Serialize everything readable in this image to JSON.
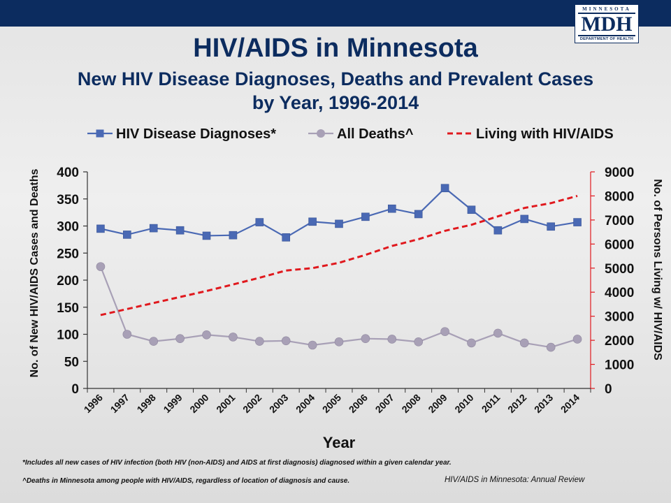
{
  "logo": {
    "state": "MINNESOTA",
    "mdh": "MDH",
    "dept": "DEPARTMENT OF HEALTH"
  },
  "chart_data": {
    "type": "line",
    "title": "HIV/AIDS in Minnesota",
    "subtitle_line1": "New HIV Disease Diagnoses, Deaths and Prevalent Cases",
    "subtitle_line2": "by Year, 1996-2014",
    "xlabel": "Year",
    "ylabel_left": "No. of New HIV/AIDS Cases and Deaths",
    "ylabel_right": "No. of Persons Living w/ HIV/AIDS",
    "ylim_left": [
      0,
      400
    ],
    "ylim_right": [
      0,
      9000
    ],
    "yticks_left": [
      "0",
      "50",
      "100",
      "150",
      "200",
      "250",
      "300",
      "350",
      "400"
    ],
    "yticks_right": [
      "0",
      "1000",
      "2000",
      "3000",
      "4000",
      "5000",
      "6000",
      "7000",
      "8000",
      "9000"
    ],
    "grid": false,
    "legend_position": "top",
    "categories": [
      "1996",
      "1997",
      "1998",
      "1999",
      "2000",
      "2001",
      "2002",
      "2003",
      "2004",
      "2005",
      "2006",
      "2007",
      "2008",
      "2009",
      "2010",
      "2011",
      "2012",
      "2013",
      "2014"
    ],
    "series": [
      {
        "name": "HIV Disease Diagnoses*",
        "axis": "left",
        "color": "#4a69b4",
        "marker": "square",
        "values": [
          295,
          284,
          296,
          292,
          282,
          283,
          307,
          279,
          308,
          304,
          317,
          332,
          322,
          370,
          330,
          292,
          313,
          299,
          307
        ]
      },
      {
        "name": "All Deaths^",
        "axis": "left",
        "color": "#a8a0b6",
        "marker": "circle",
        "values": [
          225,
          100,
          87,
          92,
          99,
          95,
          87,
          88,
          80,
          86,
          92,
          91,
          86,
          105,
          84,
          102,
          84,
          76,
          91
        ]
      },
      {
        "name": "Living with HIV/AIDS",
        "axis": "right",
        "color": "#e0191e",
        "marker": "none",
        "dashed": true,
        "values": [
          3050,
          3300,
          3550,
          3800,
          4050,
          4320,
          4600,
          4900,
          5000,
          5220,
          5550,
          5920,
          6200,
          6550,
          6800,
          7150,
          7500,
          7700,
          8000
        ]
      }
    ]
  },
  "footnotes": {
    "note1": "*Includes all new cases of HIV infection (both HIV (non-AIDS) and AIDS at first diagnosis) diagnosed within a given calendar year.",
    "note2": "^Deaths in Minnesota among people with HIV/AIDS, regardless of location of diagnosis and cause.",
    "source": "HIV/AIDS in Minnesota: Annual Review"
  }
}
